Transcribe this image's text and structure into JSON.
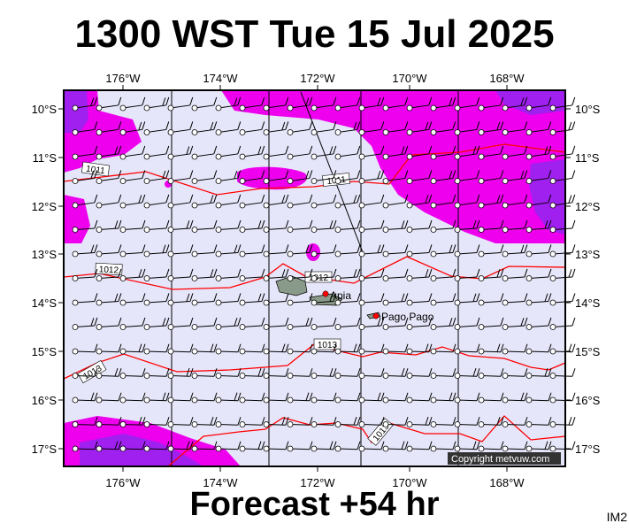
{
  "header": {
    "title": "1300 WST Tue 15 Jul 2025"
  },
  "footer": {
    "forecast": "Forecast +54 hr",
    "code": "IM2"
  },
  "map": {
    "lon_labels": [
      "176°W",
      "174°W",
      "172°W",
      "170°W",
      "168°W"
    ],
    "lat_labels": [
      "10°S",
      "11°S",
      "12°S",
      "13°S",
      "14°S",
      "15°S",
      "16°S",
      "17°S"
    ],
    "isobar_labels": [
      "1011",
      "1011",
      "1012",
      "1012",
      "1013",
      "1013",
      "1013"
    ],
    "places": [
      "Apia",
      "Pago Pago"
    ],
    "copyright": "Copyright metvuw.com",
    "colors": {
      "background": "#e6e6fa",
      "wind_medium": "#ee00ee",
      "wind_strong": "#9933ff",
      "isobar": "#ff0000",
      "land": "#8a9a8a",
      "city": "#ff0000"
    }
  }
}
